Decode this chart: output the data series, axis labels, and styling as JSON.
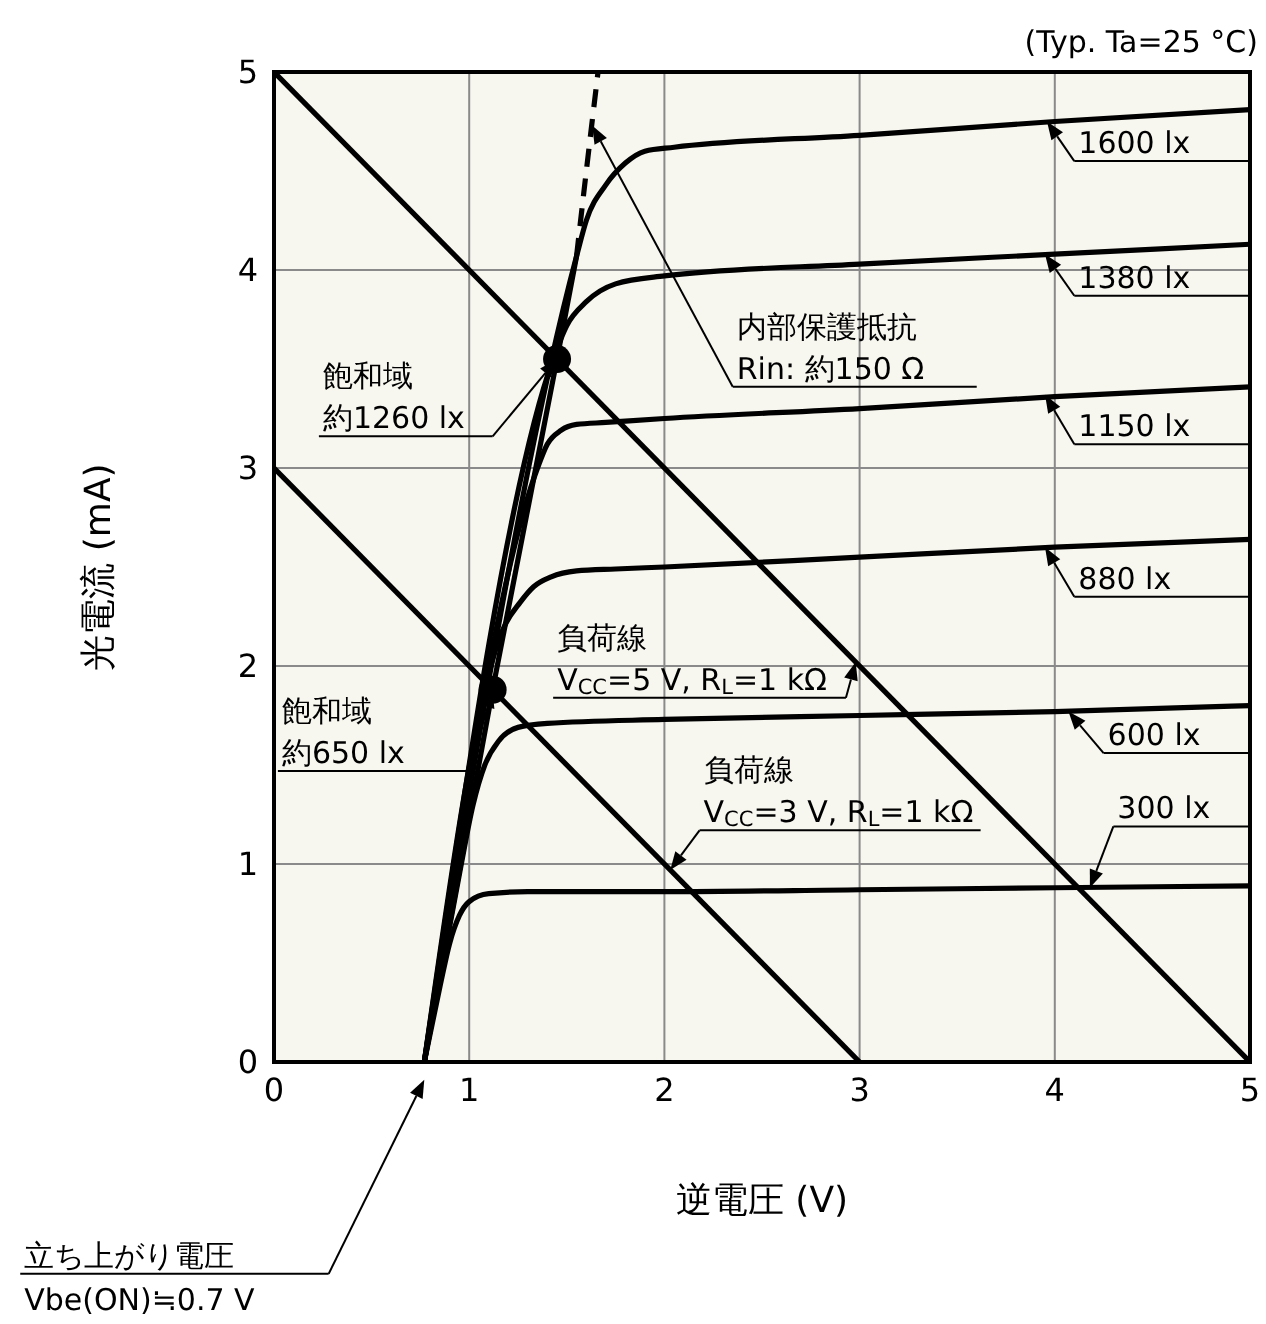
{
  "chart_data": {
    "type": "line",
    "xlabel": "逆電圧 (V)",
    "ylabel": "光電流 (mA)",
    "xlim": [
      0,
      5
    ],
    "ylim": [
      0,
      5
    ],
    "xticks": [
      0,
      1,
      2,
      3,
      4,
      5
    ],
    "yticks": [
      0,
      1,
      2,
      3,
      4,
      5
    ],
    "grid": true,
    "marker": "none",
    "line_style": "solid",
    "series": [
      {
        "color": "#000000",
        "x": [
          0.77,
          1.12,
          1.45,
          1.55
        ],
        "values": [
          0,
          1.88,
          3.55,
          4.07
        ]
      },
      {
        "color": "#000000",
        "line_style": "dashed",
        "x": [
          1.55,
          1.6,
          1.66
        ],
        "values": [
          4.07,
          4.5,
          5.0
        ]
      },
      {
        "color": "#000000",
        "x": [
          0.77,
          0.85,
          0.9,
          0.95,
          1.0,
          1.1,
          1.3,
          2,
          3,
          4,
          5
        ],
        "values": [
          0,
          0.38,
          0.6,
          0.74,
          0.81,
          0.85,
          0.86,
          0.86,
          0.87,
          0.88,
          0.89
        ]
      },
      {
        "color": "#000000",
        "x": [
          0.77,
          0.95,
          1.02,
          1.08,
          1.15,
          1.25,
          1.4,
          2,
          3,
          4,
          5
        ],
        "values": [
          0,
          0.95,
          1.3,
          1.5,
          1.62,
          1.69,
          1.71,
          1.73,
          1.75,
          1.77,
          1.8
        ]
      },
      {
        "color": "#000000",
        "x": [
          0.77,
          1.18,
          1.26,
          1.33,
          1.42,
          1.55,
          1.75,
          2,
          3,
          4,
          5
        ],
        "values": [
          0,
          2.2,
          2.32,
          2.4,
          2.45,
          2.48,
          2.49,
          2.5,
          2.55,
          2.6,
          2.64
        ]
      },
      {
        "color": "#000000",
        "x": [
          0.77,
          1.35,
          1.4,
          1.47,
          1.55,
          1.7,
          2,
          3,
          4,
          5
        ],
        "values": [
          0,
          3.0,
          3.12,
          3.19,
          3.22,
          3.23,
          3.25,
          3.3,
          3.36,
          3.41
        ]
      },
      {
        "color": "#000000",
        "x": [
          0.77,
          1.43,
          1.5,
          1.6,
          1.75,
          2,
          3,
          4,
          5
        ],
        "values": [
          0,
          3.55,
          3.72,
          3.84,
          3.93,
          3.97,
          4.03,
          4.08,
          4.13
        ]
      },
      {
        "color": "#000000",
        "x": [
          0.77,
          1.55,
          1.6,
          1.7,
          1.8,
          1.9,
          2.05,
          3,
          4,
          5
        ],
        "values": [
          0,
          4.07,
          4.25,
          4.43,
          4.54,
          4.6,
          4.62,
          4.68,
          4.75,
          4.81
        ]
      },
      {
        "color": "#000000",
        "x": [
          0,
          5
        ],
        "values": [
          5,
          0
        ]
      },
      {
        "color": "#000000",
        "x": [
          0,
          3
        ],
        "values": [
          3,
          0
        ]
      },
      {
        "type": "scatter",
        "marker": "circle",
        "color": "#000000",
        "x": [
          1.12,
          1.45
        ],
        "values": [
          1.88,
          3.55
        ]
      }
    ],
    "annotations": [
      "(Typ. Ta=25 °C)",
      {
        "text": "1600 lx",
        "x": 3.96,
        "y": 4.75
      },
      {
        "text": "1380 lx",
        "x": 3.95,
        "y": 4.08
      },
      {
        "text": "1150 lx",
        "x": 3.95,
        "y": 3.37
      },
      {
        "text": "880 lx",
        "x": 3.95,
        "y": 2.6
      },
      {
        "text": "600 lx",
        "x": 4.07,
        "y": 1.77
      },
      {
        "text": "300 lx",
        "x": 4.18,
        "y": 0.88
      },
      {
        "text": "飽和域約1260 lx",
        "x": 1.45,
        "y": 3.55
      },
      {
        "text": "内部保護抵抗\nRin: 約150 Ω",
        "x": 1.63,
        "y": 4.73
      },
      {
        "text": "負荷線\nV$_{CC}$=5 V, R$_{L}$=1 kΩ",
        "x": 2.98,
        "y": 2.02
      },
      {
        "text": "負荷線\nV$_{CC}$=3 V, R$_{L}$=1 kΩ",
        "x": 2.03,
        "y": 0.97
      },
      {
        "text": "飽和域約650 lx",
        "x": 1.12,
        "y": 1.88
      },
      "立ち上がり電圧\nVbe(ON)≒0.7 V"
    ]
  }
}
